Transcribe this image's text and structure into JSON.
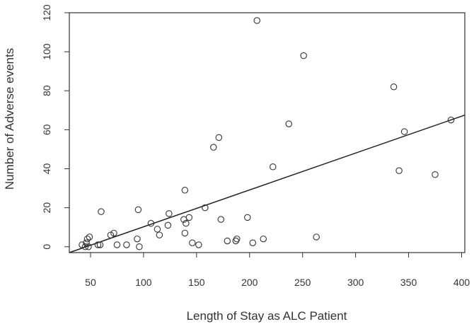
{
  "chart_data": {
    "type": "scatter",
    "title": "",
    "xlabel": "Length of Stay as ALC Patient",
    "ylabel": "Number of Adverse events",
    "xlim": [
      30,
      403
    ],
    "ylim": [
      -3,
      120
    ],
    "x_ticks": [
      50,
      100,
      150,
      200,
      250,
      300,
      350,
      400
    ],
    "y_ticks": [
      0,
      20,
      40,
      60,
      80,
      100,
      120
    ],
    "grid": false,
    "legend": "none",
    "marker": "open-circle",
    "colors": {
      "axis": "#333333",
      "points": "#333333",
      "fit_line": "#222222"
    },
    "points": [
      {
        "x": 42,
        "y": 1
      },
      {
        "x": 45,
        "y": 0
      },
      {
        "x": 46,
        "y": 2
      },
      {
        "x": 47,
        "y": 4
      },
      {
        "x": 48,
        "y": 0
      },
      {
        "x": 49,
        "y": 5
      },
      {
        "x": 57,
        "y": 1
      },
      {
        "x": 59,
        "y": 1
      },
      {
        "x": 60,
        "y": 18
      },
      {
        "x": 69,
        "y": 6
      },
      {
        "x": 72,
        "y": 7
      },
      {
        "x": 75,
        "y": 1
      },
      {
        "x": 84,
        "y": 1
      },
      {
        "x": 94,
        "y": 4
      },
      {
        "x": 95,
        "y": 19
      },
      {
        "x": 96,
        "y": 0
      },
      {
        "x": 107,
        "y": 12
      },
      {
        "x": 113,
        "y": 9
      },
      {
        "x": 115,
        "y": 6
      },
      {
        "x": 123,
        "y": 11
      },
      {
        "x": 124,
        "y": 17
      },
      {
        "x": 138,
        "y": 14
      },
      {
        "x": 139,
        "y": 29
      },
      {
        "x": 139,
        "y": 7
      },
      {
        "x": 140,
        "y": 12
      },
      {
        "x": 143,
        "y": 15
      },
      {
        "x": 146,
        "y": 2
      },
      {
        "x": 152,
        "y": 1
      },
      {
        "x": 158,
        "y": 20
      },
      {
        "x": 166,
        "y": 51
      },
      {
        "x": 171,
        "y": 56
      },
      {
        "x": 173,
        "y": 14
      },
      {
        "x": 179,
        "y": 3
      },
      {
        "x": 187,
        "y": 3
      },
      {
        "x": 188,
        "y": 4
      },
      {
        "x": 198,
        "y": 15
      },
      {
        "x": 203,
        "y": 2
      },
      {
        "x": 207,
        "y": 116
      },
      {
        "x": 213,
        "y": 4
      },
      {
        "x": 222,
        "y": 41
      },
      {
        "x": 237,
        "y": 63
      },
      {
        "x": 251,
        "y": 98
      },
      {
        "x": 263,
        "y": 5
      },
      {
        "x": 336,
        "y": 82
      },
      {
        "x": 341,
        "y": 39
      },
      {
        "x": 346,
        "y": 59
      },
      {
        "x": 375,
        "y": 37
      },
      {
        "x": 390,
        "y": 65
      }
    ],
    "fit_line": {
      "x": [
        30,
        403
      ],
      "y": [
        -3,
        67.5
      ]
    }
  }
}
